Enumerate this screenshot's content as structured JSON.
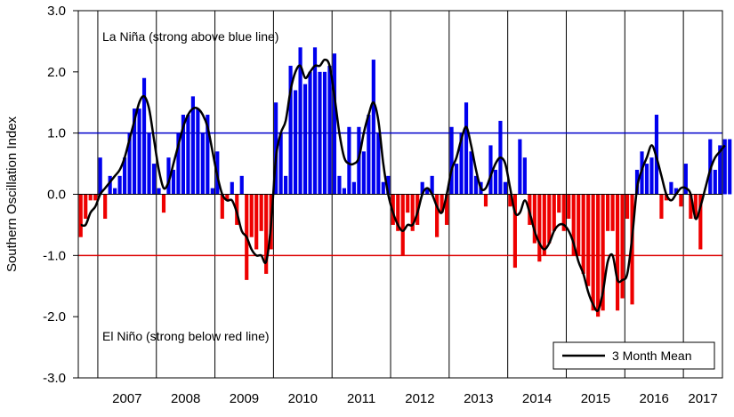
{
  "chart_data": {
    "type": "bar",
    "title": "",
    "xlabel": "",
    "ylabel": "Southern Oscillation Index",
    "ylim": [
      -3.0,
      3.0
    ],
    "yticks": [
      "3.0",
      "2.0",
      "1.0",
      "0.0",
      "-1.0",
      "-2.0",
      "-3.0"
    ],
    "year_labels": [
      "2007",
      "2008",
      "2009",
      "2010",
      "2011",
      "2012",
      "2013",
      "2014",
      "2015",
      "2016",
      "2017"
    ],
    "x_start": "2006-09",
    "x_end": "2017-09",
    "grid": "vertical lines at year boundaries",
    "thresholds": [
      {
        "value": 1.0,
        "color": "#0000cc"
      },
      {
        "value": -1.0,
        "color": "#dd0000"
      }
    ],
    "colors": {
      "positive": "#0000ee",
      "negative": "#ee0000",
      "mean_line": "#000000"
    },
    "annotations": {
      "la_nina": "La Niña (strong above blue line)",
      "el_nino": "El Niño (strong below red line)"
    },
    "legend": {
      "label": "3 Month Mean",
      "position": "bottom-right"
    },
    "series": [
      {
        "name": "SOI",
        "start": "2006-09",
        "values": [
          -0.7,
          -0.4,
          -0.1,
          -0.1,
          0.6,
          -0.4,
          0.3,
          0.1,
          0.3,
          0.6,
          1.0,
          1.4,
          1.4,
          1.9,
          1.0,
          0.5,
          0.1,
          -0.3,
          0.6,
          0.4,
          1.0,
          1.3,
          1.3,
          1.6,
          1.4,
          1.0,
          1.3,
          0.1,
          0.7,
          -0.4,
          -0.1,
          0.2,
          -0.5,
          0.3,
          -1.4,
          -0.7,
          -0.9,
          -0.6,
          -1.3,
          -0.9,
          1.5,
          1.0,
          0.3,
          2.1,
          1.7,
          2.4,
          1.8,
          2.0,
          2.4,
          2.0,
          2.0,
          2.1,
          2.3,
          0.3,
          0.1,
          1.1,
          0.2,
          1.1,
          0.7,
          1.3,
          2.2,
          1.0,
          0.2,
          0.3,
          -0.5,
          -0.6,
          -1.0,
          -0.3,
          -0.6,
          -0.5,
          0.2,
          0.1,
          0.3,
          -0.7,
          -0.3,
          -0.5,
          1.1,
          0.5,
          1.0,
          1.5,
          0.7,
          0.3,
          0.2,
          -0.2,
          0.8,
          0.4,
          1.2,
          0.2,
          -0.2,
          -1.2,
          0.9,
          0.6,
          -0.5,
          -0.8,
          -1.1,
          -1.0,
          -0.8,
          -0.6,
          -0.3,
          -0.6,
          -0.4,
          -1.0,
          -1.0,
          -1.3,
          -1.5,
          -1.9,
          -2.0,
          -1.9,
          -0.6,
          -0.6,
          -1.9,
          -1.7,
          -0.4,
          -1.8,
          0.4,
          0.7,
          0.5,
          0.6,
          1.3,
          -0.4,
          -0.1,
          0.2,
          0.1,
          -0.2,
          0.5,
          -0.4,
          -0.4,
          -0.9,
          0.0,
          0.9,
          0.4,
          0.8,
          0.9,
          0.9
        ]
      },
      {
        "name": "3 Month Mean",
        "start": "2006-09",
        "values": [
          -0.5,
          -0.5,
          -0.3,
          -0.2,
          0.0,
          0.1,
          0.2,
          0.3,
          0.4,
          0.6,
          0.9,
          1.2,
          1.5,
          1.6,
          1.4,
          0.9,
          0.4,
          0.1,
          0.2,
          0.5,
          0.8,
          1.1,
          1.3,
          1.4,
          1.4,
          1.3,
          1.1,
          0.7,
          0.3,
          0.0,
          -0.1,
          -0.1,
          -0.3,
          -0.6,
          -0.7,
          -0.9,
          -1.0,
          -1.0,
          -1.1,
          -0.5,
          0.6,
          1.0,
          1.2,
          1.7,
          2.0,
          2.1,
          1.9,
          2.0,
          2.1,
          2.1,
          2.2,
          2.1,
          1.6,
          1.0,
          0.6,
          0.5,
          0.5,
          0.6,
          1.0,
          1.3,
          1.5,
          1.2,
          0.5,
          0.0,
          -0.3,
          -0.5,
          -0.6,
          -0.5,
          -0.5,
          -0.3,
          0.0,
          0.1,
          0.0,
          -0.2,
          -0.3,
          0.0,
          0.4,
          0.6,
          0.9,
          1.1,
          0.8,
          0.4,
          0.1,
          0.1,
          0.3,
          0.5,
          0.6,
          0.5,
          0.1,
          -0.3,
          -0.3,
          -0.1,
          -0.3,
          -0.6,
          -0.8,
          -0.9,
          -0.8,
          -0.6,
          -0.5,
          -0.5,
          -0.6,
          -0.8,
          -1.1,
          -1.3,
          -1.6,
          -1.8,
          -1.9,
          -1.6,
          -1.1,
          -1.0,
          -1.4,
          -1.4,
          -1.3,
          -0.7,
          0.1,
          0.4,
          0.6,
          0.8,
          0.6,
          0.3,
          0.0,
          -0.1,
          0.0,
          0.1,
          0.1,
          0.0,
          -0.4,
          -0.2,
          0.1,
          0.4,
          0.6,
          0.7,
          0.8
        ]
      }
    ]
  }
}
